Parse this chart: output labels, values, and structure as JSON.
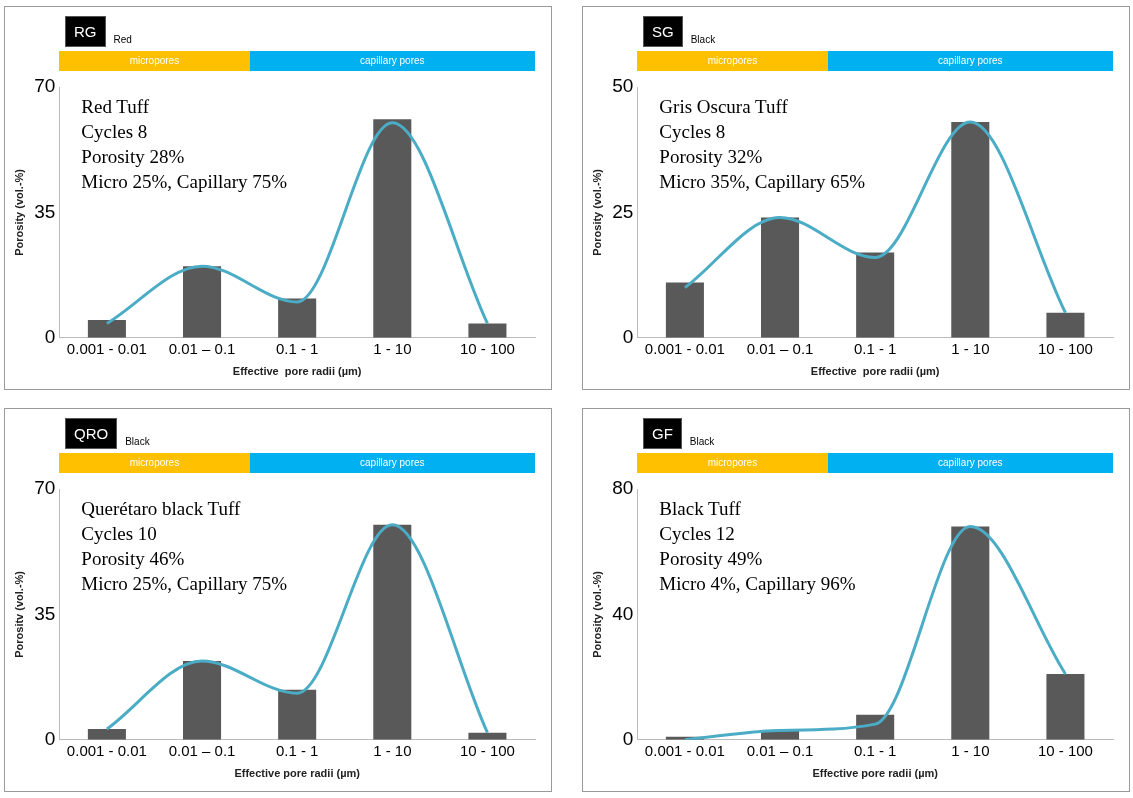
{
  "chart_data": [
    {
      "type": "bar",
      "title": "RG",
      "subtitle": "Red",
      "ylabel": "Porosity (vol.-%)",
      "xlabel": "Effective  pore radii (µm)",
      "categories": [
        "0.001 - 0.01",
        "0.01 – 0.1",
        "0.1 - 1",
        "1 - 10",
        "10 - 100"
      ],
      "marker": "none",
      "series": [
        {
          "type": "bar",
          "color": "#595959",
          "values": [
            5,
            20,
            11,
            61,
            4
          ]
        },
        {
          "type": "line",
          "color": "#4bacc6",
          "values": [
            4,
            20,
            10,
            60,
            4
          ]
        }
      ],
      "ylim": [
        0,
        70
      ],
      "yticks": [
        0,
        35,
        70
      ],
      "grid": false,
      "annotations": [
        "micropores",
        "capillary pores",
        "Red Tuff",
        "Cycles 8",
        "Porosity 28%",
        "Micro 25%, Capillary 75%"
      ]
    },
    {
      "type": "bar",
      "title": "SG",
      "subtitle": "Black",
      "ylabel": "Porosity (vol.-%)",
      "xlabel": "Effective  pore radii (µm)",
      "categories": [
        "0.001 - 0.01",
        "0.01 – 0.1",
        "0.1 - 1",
        "1 - 10",
        "10 - 100"
      ],
      "marker": "none",
      "series": [
        {
          "type": "bar",
          "color": "#595959",
          "values": [
            11,
            24,
            17,
            43,
            5
          ]
        },
        {
          "type": "line",
          "color": "#4bacc6",
          "values": [
            10,
            24,
            16,
            43,
            5
          ]
        }
      ],
      "ylim": [
        0,
        50
      ],
      "yticks": [
        0,
        25,
        50
      ],
      "grid": false,
      "annotations": [
        "micropores",
        "capillary pores",
        "Gris Oscura Tuff",
        "Cycles 8",
        "Porosity 32%",
        "Micro 35%, Capillary 65%"
      ]
    },
    {
      "type": "bar",
      "title": "QRO",
      "subtitle": "Black",
      "ylabel": "Porositv (vol.-%)",
      "xlabel": "Effective pore radii (µm)",
      "categories": [
        "0.001 - 0.01",
        "0.01 – 0.1",
        "0.1 - 1",
        "1 - 10",
        "10 - 100"
      ],
      "marker": "none",
      "series": [
        {
          "type": "bar",
          "color": "#595959",
          "values": [
            3,
            22,
            14,
            60,
            2
          ]
        },
        {
          "type": "line",
          "color": "#4bacc6",
          "values": [
            3,
            22,
            13,
            60,
            2
          ]
        }
      ],
      "ylim": [
        0,
        70
      ],
      "yticks": [
        0,
        35,
        70
      ],
      "grid": false,
      "annotations": [
        "micropores",
        "capillary pores",
        "Querétaro black Tuff",
        "Cycles 10",
        "Porosity 46%",
        "Micro 25%, Capillary 75%"
      ]
    },
    {
      "type": "bar",
      "title": "GF",
      "subtitle": "Black",
      "ylabel": "Porosity (vol.-%)",
      "xlabel": "Effective pore radii (µm)",
      "categories": [
        "0.001 - 0.01",
        "0.01 – 0.1",
        "0.1 - 1",
        "1 - 10",
        "10 - 100"
      ],
      "marker": "none",
      "series": [
        {
          "type": "bar",
          "color": "#595959",
          "values": [
            1,
            3,
            8,
            68,
            21
          ]
        },
        {
          "type": "line",
          "color": "#4bacc6",
          "values": [
            0,
            3,
            5,
            68,
            21
          ]
        }
      ],
      "ylim": [
        0,
        80
      ],
      "yticks": [
        0,
        40,
        80
      ],
      "grid": false,
      "annotations": [
        "micropores",
        "capillary pores",
        "Black Tuff",
        "Cycles 12",
        "Porosity 49%",
        "Micro 4%, Capillary 96%"
      ]
    }
  ]
}
